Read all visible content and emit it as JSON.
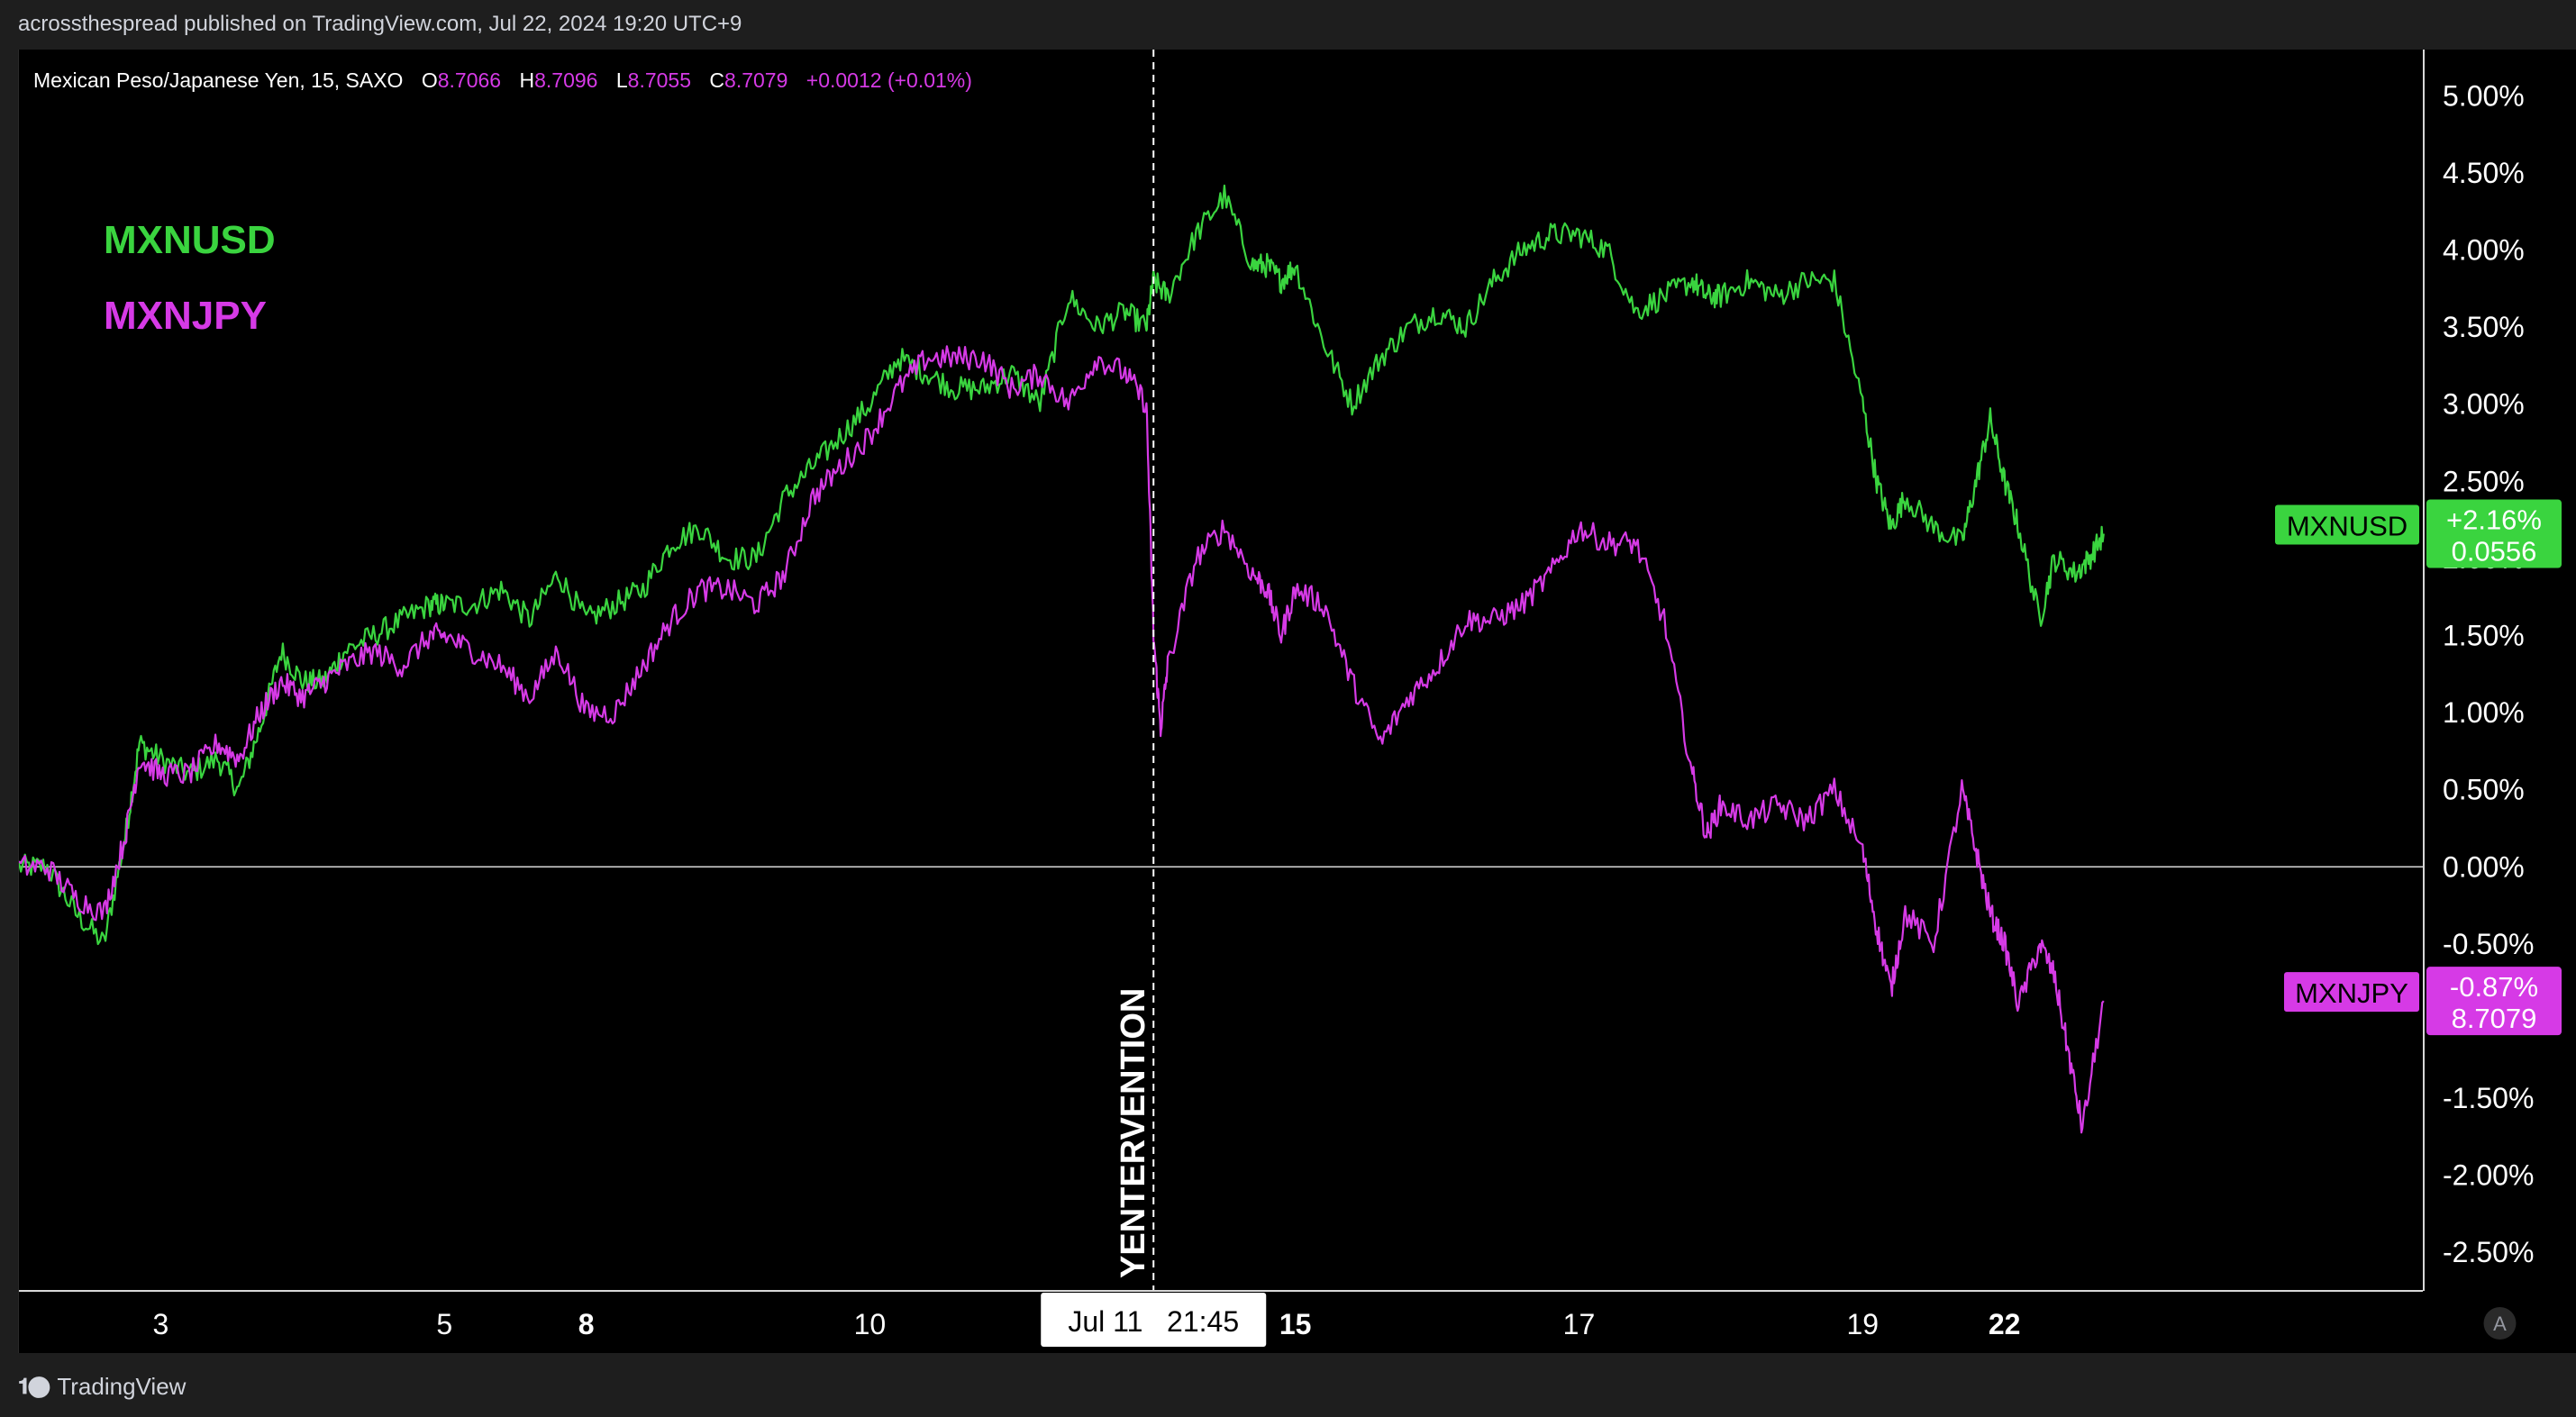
{
  "header": {
    "published_text": "acrossthespread published on TradingView.com, Jul 22, 2024 19:20 UTC+9"
  },
  "legend": {
    "symbol": "Mexican Peso/Japanese Yen, 15, SAXO",
    "open_label": "O",
    "open_value": "8.7066",
    "high_label": "H",
    "high_value": "8.7096",
    "low_label": "L",
    "low_value": "8.7055",
    "close_label": "C",
    "close_value": "8.7079",
    "change": "+0.0012 (+0.01%)"
  },
  "footer": {
    "brand": "TradingView",
    "scale_button": "A"
  },
  "colors": {
    "mxnusd": "#3ad43f",
    "mxnjpy": "#d63ae6",
    "background": "#000000",
    "text": "#ffffff"
  },
  "chart_data": {
    "type": "line",
    "x_unit": "trading day (Jul 2024)",
    "x_ticks": [
      {
        "x": 1,
        "label": "3",
        "bold": false
      },
      {
        "x": 3,
        "label": "5",
        "bold": false
      },
      {
        "x": 4,
        "label": "8",
        "bold": true
      },
      {
        "x": 6,
        "label": "10",
        "bold": false
      },
      {
        "x": 9,
        "label": "15",
        "bold": true
      },
      {
        "x": 11,
        "label": "17",
        "bold": false
      },
      {
        "x": 13,
        "label": "19",
        "bold": false
      },
      {
        "x": 14,
        "label": "22",
        "bold": true
      }
    ],
    "xlim": [
      0,
      16.95
    ],
    "ylim": [
      -2.75,
      5.3
    ],
    "y_unit": "%",
    "y_ticks": [
      "5.00%",
      "4.50%",
      "4.00%",
      "3.50%",
      "3.00%",
      "2.50%",
      "2.00%",
      "1.50%",
      "1.00%",
      "0.50%",
      "0.00%",
      "-0.50%",
      "-1.00%",
      "-1.50%",
      "-2.00%",
      "-2.50%"
    ],
    "y_tick_values": [
      5.0,
      4.5,
      4.0,
      3.5,
      3.0,
      2.5,
      2.0,
      1.5,
      1.0,
      0.5,
      0.0,
      -0.5,
      -1.0,
      -1.5,
      -2.0,
      -2.5
    ],
    "zero_line": 0.0,
    "series": [
      {
        "name": "MXNUSD",
        "color": "#3ad43f",
        "last_change": "+2.16%",
        "last_price": "0.0556",
        "x": [
          0.0,
          0.2,
          0.4,
          0.6,
          0.75,
          0.85,
          1.0,
          1.2,
          1.4,
          1.55,
          1.7,
          1.85,
          2.0,
          2.15,
          2.3,
          2.5,
          2.7,
          2.9,
          3.0,
          3.2,
          3.4,
          3.6,
          3.8,
          4.0,
          4.2,
          4.4,
          4.6,
          4.8,
          5.0,
          5.2,
          5.4,
          5.6,
          5.8,
          6.0,
          6.2,
          6.4,
          6.6,
          6.8,
          7.0,
          7.2,
          7.4,
          7.6,
          7.8,
          7.95,
          8.0,
          8.1,
          8.3,
          8.5,
          8.7,
          8.8,
          8.9,
          9.0,
          9.2,
          9.4,
          9.6,
          9.8,
          10.0,
          10.2,
          10.4,
          10.6,
          10.8,
          11.0,
          11.2,
          11.4,
          11.6,
          11.8,
          11.9,
          12.0,
          12.2,
          12.4,
          12.6,
          12.8,
          13.0,
          13.1,
          13.2,
          13.3,
          13.5,
          13.7,
          13.8,
          13.9,
          14.0,
          14.1,
          14.25,
          14.35,
          14.5,
          14.6,
          14.7
        ],
        "values": [
          0.0,
          0.0,
          -0.3,
          -0.5,
          0.2,
          0.8,
          0.7,
          0.6,
          0.7,
          0.5,
          0.9,
          1.4,
          1.2,
          1.2,
          1.4,
          1.5,
          1.6,
          1.7,
          1.7,
          1.7,
          1.8,
          1.6,
          1.9,
          1.6,
          1.7,
          1.8,
          2.1,
          2.2,
          2.0,
          2.0,
          2.4,
          2.6,
          2.8,
          3.0,
          3.3,
          3.2,
          3.1,
          3.1,
          3.2,
          3.0,
          3.7,
          3.5,
          3.6,
          3.5,
          3.8,
          3.7,
          4.1,
          4.35,
          3.9,
          3.9,
          3.8,
          3.9,
          3.4,
          3.0,
          3.3,
          3.5,
          3.6,
          3.5,
          3.8,
          4.0,
          4.1,
          4.1,
          4.0,
          3.6,
          3.7,
          3.8,
          3.7,
          3.7,
          3.8,
          3.7,
          3.8,
          3.8,
          3.0,
          2.5,
          2.2,
          2.4,
          2.2,
          2.1,
          2.5,
          2.9,
          2.5,
          2.2,
          1.6,
          2.0,
          1.9,
          2.0,
          2.16
        ]
      },
      {
        "name": "MXNJPY",
        "color": "#d63ae6",
        "last_change": "-0.87%",
        "last_price": "8.7079",
        "x": [
          0.0,
          0.2,
          0.4,
          0.6,
          0.75,
          0.85,
          1.0,
          1.2,
          1.4,
          1.55,
          1.7,
          1.85,
          2.0,
          2.15,
          2.3,
          2.5,
          2.7,
          2.9,
          3.0,
          3.2,
          3.4,
          3.6,
          3.8,
          4.0,
          4.2,
          4.4,
          4.6,
          4.8,
          5.0,
          5.2,
          5.4,
          5.6,
          5.8,
          6.0,
          6.2,
          6.4,
          6.6,
          6.8,
          7.0,
          7.2,
          7.4,
          7.6,
          7.8,
          7.95,
          8.0,
          8.05,
          8.1,
          8.3,
          8.5,
          8.7,
          8.8,
          8.9,
          9.0,
          9.2,
          9.4,
          9.6,
          9.8,
          10.0,
          10.2,
          10.4,
          10.6,
          10.8,
          11.0,
          11.2,
          11.4,
          11.6,
          11.8,
          11.9,
          12.0,
          12.2,
          12.4,
          12.6,
          12.8,
          13.0,
          13.1,
          13.2,
          13.3,
          13.5,
          13.7,
          13.8,
          13.9,
          14.0,
          14.1,
          14.25,
          14.35,
          14.45,
          14.55,
          14.7
        ],
        "values": [
          0.0,
          0.0,
          -0.2,
          -0.3,
          0.2,
          0.7,
          0.6,
          0.6,
          0.8,
          0.7,
          1.0,
          1.2,
          1.1,
          1.2,
          1.3,
          1.4,
          1.3,
          1.5,
          1.5,
          1.4,
          1.3,
          1.1,
          1.4,
          1.0,
          1.0,
          1.3,
          1.6,
          1.8,
          1.8,
          1.7,
          1.9,
          2.4,
          2.6,
          2.8,
          3.1,
          3.3,
          3.3,
          3.3,
          3.1,
          3.2,
          3.0,
          3.3,
          3.2,
          3.0,
          1.5,
          0.9,
          1.3,
          2.0,
          2.2,
          1.9,
          1.8,
          1.5,
          1.8,
          1.7,
          1.2,
          0.8,
          1.1,
          1.3,
          1.6,
          1.6,
          1.7,
          1.9,
          2.2,
          2.1,
          2.1,
          1.6,
          0.6,
          0.2,
          0.4,
          0.3,
          0.4,
          0.3,
          0.5,
          0.1,
          -0.4,
          -0.8,
          -0.3,
          -0.5,
          0.5,
          0.1,
          -0.3,
          -0.5,
          -0.9,
          -0.5,
          -0.7,
          -1.2,
          -1.7,
          -0.87
        ]
      }
    ],
    "annotations": {
      "series_legend": [
        "MXNUSD",
        "MXNJPY"
      ],
      "event_label": "YENTERVENTION",
      "event_x": 8.0,
      "crosshair_label": "Jul 11   21:45"
    },
    "grid": false,
    "legend_position": "top-left"
  }
}
